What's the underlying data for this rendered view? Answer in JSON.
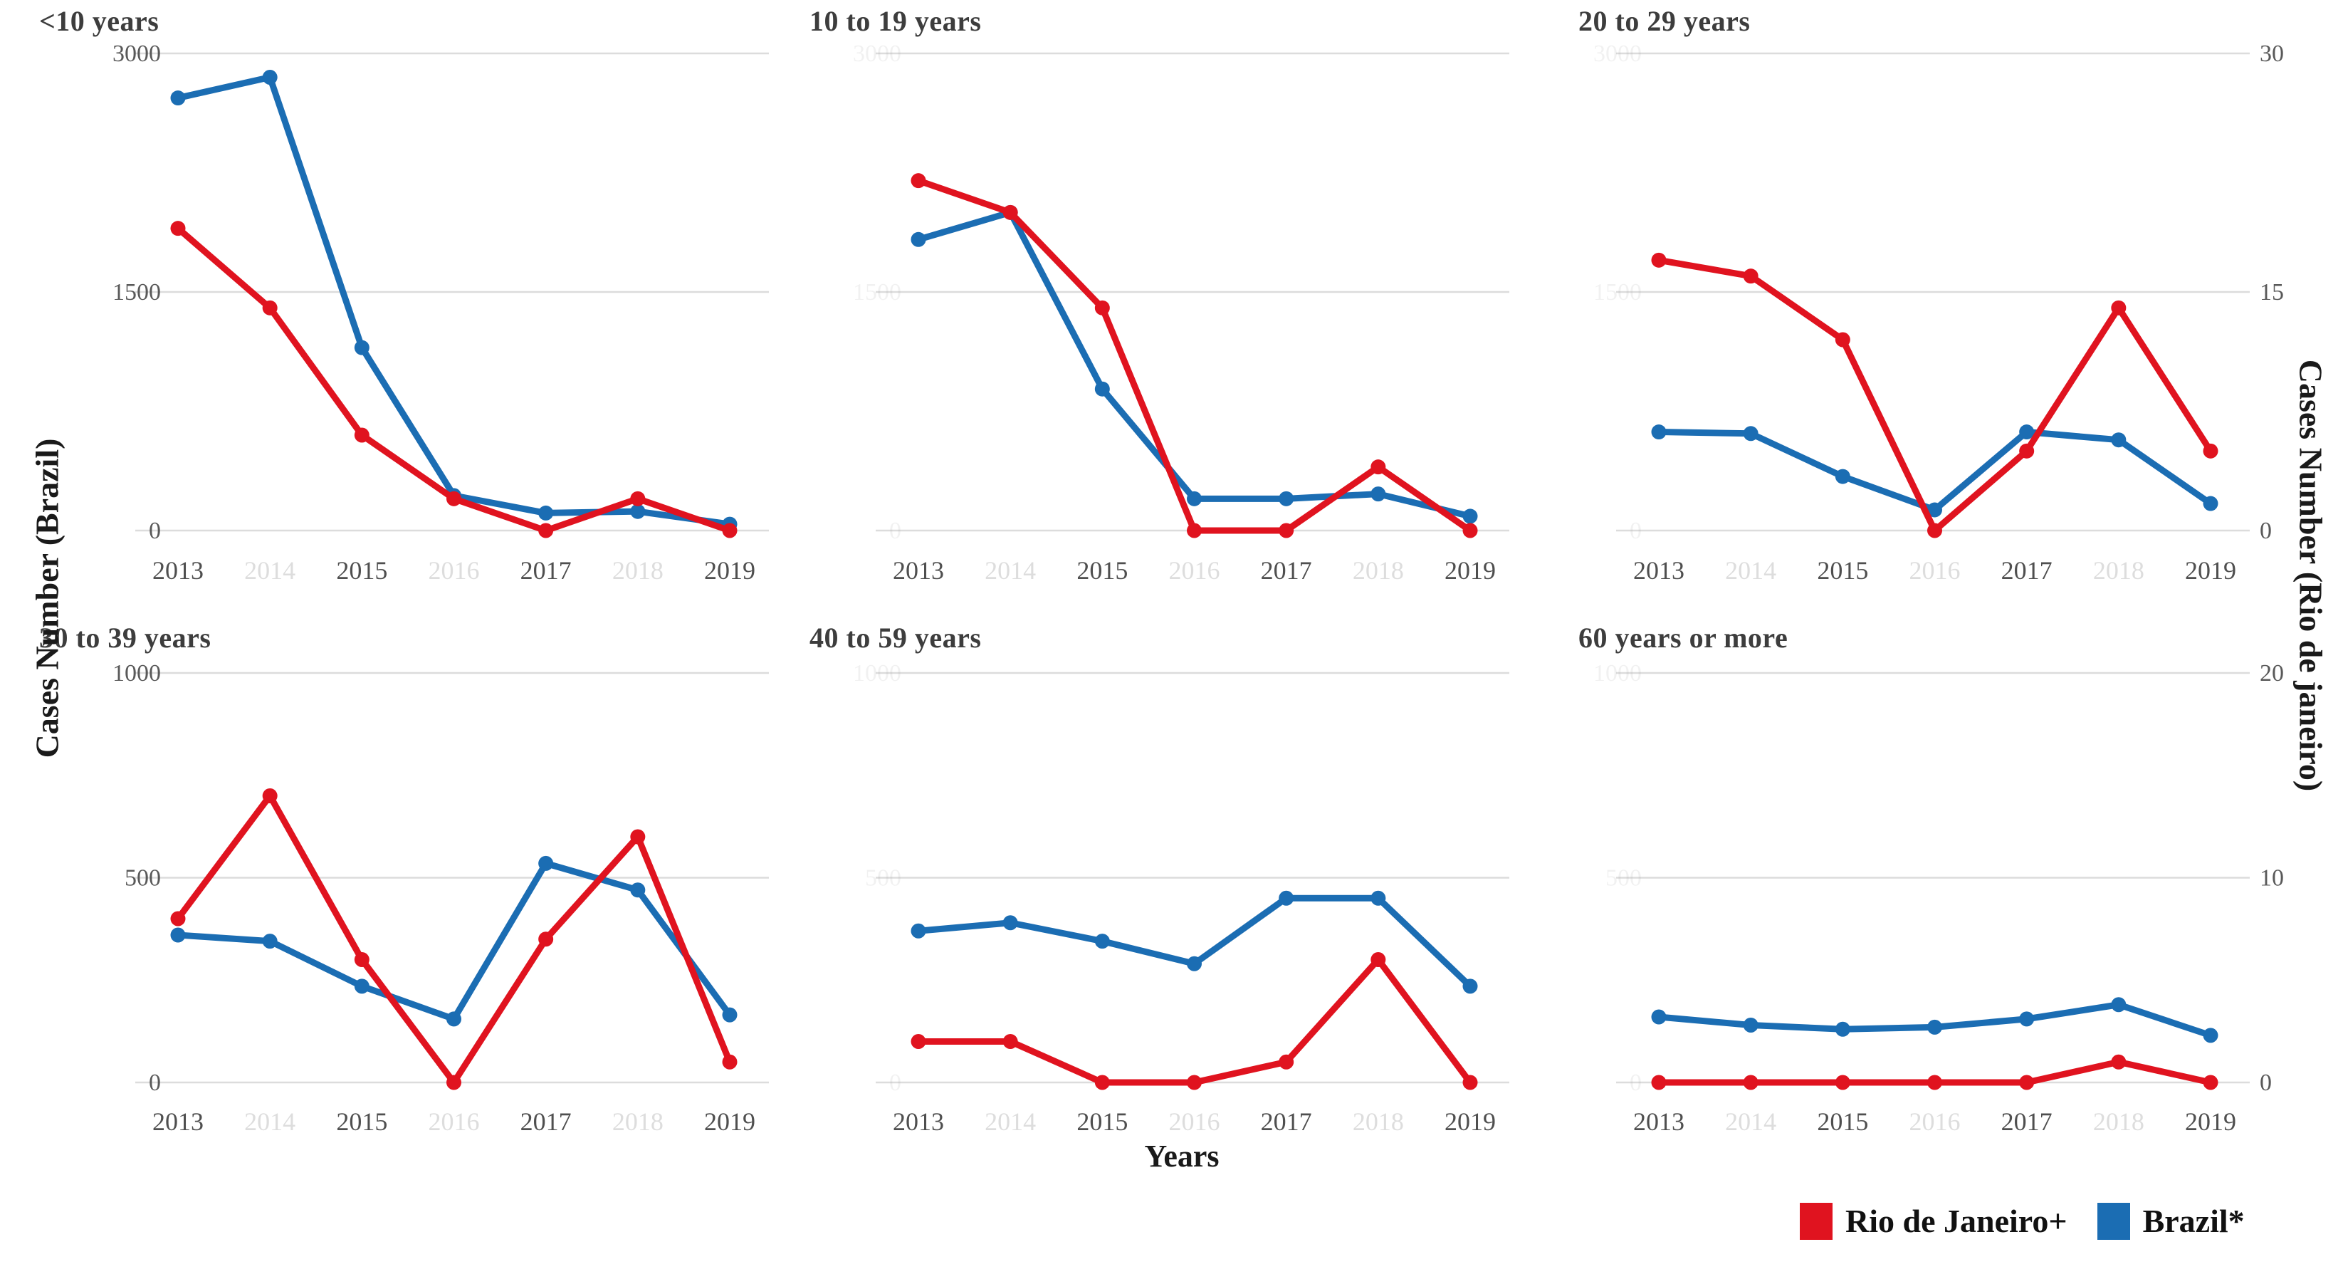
{
  "figure": {
    "x_axis_label": "Years",
    "left_axis_label": "Cases Number (Brazil)",
    "right_axis_label": "Cases Number (Rio de janeiro)",
    "legend": [
      {
        "label": "Rio de Janeiro+",
        "color": "#e0131f",
        "series": "rio"
      },
      {
        "label": "Brazil*",
        "color": "#1b6db3",
        "series": "brazil"
      }
    ],
    "colors": {
      "rio_red": "#e0131f",
      "brazil_blue": "#1b6db3",
      "gridline": "#dcdcdc",
      "tick_text": "#595959",
      "x_tick_text": "#4f4f4f",
      "faded_tick_text": "#bdbdbd",
      "title_text": "#3d3d3d"
    }
  },
  "chart_data": [
    {
      "type": "line",
      "title": "<10 years",
      "x": [
        2013,
        2014,
        2015,
        2016,
        2017,
        2018,
        2019
      ],
      "x_labeled": [
        2013,
        2015,
        2017,
        2019
      ],
      "left_ylim": [
        0,
        3000
      ],
      "left_yticks": [
        0,
        1500,
        3000
      ],
      "left_ticks_visible": true,
      "right_ylim": [
        0,
        30
      ],
      "right_yticks": [
        0,
        15,
        30
      ],
      "right_ticks_visible": false,
      "series": [
        {
          "name": "Brazil*",
          "axis": "left",
          "color": "#1b6db3",
          "values": [
            2720,
            2850,
            1150,
            220,
            110,
            120,
            40
          ]
        },
        {
          "name": "Rio de Janeiro+",
          "axis": "right",
          "color": "#e0131f",
          "values": [
            19,
            14,
            6,
            2,
            0,
            2,
            0
          ]
        }
      ]
    },
    {
      "type": "line",
      "title": "10 to 19 years",
      "x": [
        2013,
        2014,
        2015,
        2016,
        2017,
        2018,
        2019
      ],
      "x_labeled": [
        2013,
        2015,
        2017,
        2019
      ],
      "left_ylim": [
        0,
        3000
      ],
      "left_yticks": [
        0,
        1500,
        3000
      ],
      "left_ticks_visible": false,
      "right_ylim": [
        0,
        30
      ],
      "right_yticks": [
        0,
        15,
        30
      ],
      "right_ticks_visible": false,
      "series": [
        {
          "name": "Brazil*",
          "axis": "left",
          "color": "#1b6db3",
          "values": [
            1830,
            2000,
            890,
            200,
            200,
            230,
            90
          ]
        },
        {
          "name": "Rio de Janeiro+",
          "axis": "right",
          "color": "#e0131f",
          "values": [
            22,
            20,
            14,
            0,
            0,
            4,
            0
          ]
        }
      ]
    },
    {
      "type": "line",
      "title": "20 to 29 years",
      "x": [
        2013,
        2014,
        2015,
        2016,
        2017,
        2018,
        2019
      ],
      "x_labeled": [
        2013,
        2015,
        2017,
        2019
      ],
      "left_ylim": [
        0,
        3000
      ],
      "left_yticks": [
        0,
        1500,
        3000
      ],
      "left_ticks_visible": false,
      "right_ylim": [
        0,
        30
      ],
      "right_yticks": [
        0,
        15,
        30
      ],
      "right_ticks_visible": true,
      "series": [
        {
          "name": "Brazil*",
          "axis": "left",
          "color": "#1b6db3",
          "values": [
            620,
            610,
            340,
            130,
            620,
            570,
            170
          ]
        },
        {
          "name": "Rio de Janeiro+",
          "axis": "right",
          "color": "#e0131f",
          "values": [
            17,
            16,
            12,
            0,
            5,
            14,
            5
          ]
        }
      ]
    },
    {
      "type": "line",
      "title": "30 to 39 years",
      "x": [
        2013,
        2014,
        2015,
        2016,
        2017,
        2018,
        2019
      ],
      "x_labeled": [
        2013,
        2015,
        2017,
        2019
      ],
      "left_ylim": [
        0,
        1000
      ],
      "left_yticks": [
        0,
        500,
        1000
      ],
      "left_ticks_visible": true,
      "right_ylim": [
        0,
        20
      ],
      "right_yticks": [
        0,
        10,
        20
      ],
      "right_ticks_visible": false,
      "series": [
        {
          "name": "Brazil*",
          "axis": "left",
          "color": "#1b6db3",
          "values": [
            360,
            345,
            235,
            155,
            535,
            470,
            165
          ]
        },
        {
          "name": "Rio de Janeiro+",
          "axis": "right",
          "color": "#e0131f",
          "values": [
            8,
            14,
            6,
            0,
            7,
            12,
            1
          ]
        }
      ]
    },
    {
      "type": "line",
      "title": "40 to 59 years",
      "x": [
        2013,
        2014,
        2015,
        2016,
        2017,
        2018,
        2019
      ],
      "x_labeled": [
        2013,
        2015,
        2017,
        2019
      ],
      "left_ylim": [
        0,
        1000
      ],
      "left_yticks": [
        0,
        500,
        1000
      ],
      "left_ticks_visible": false,
      "right_ylim": [
        0,
        20
      ],
      "right_yticks": [
        0,
        10,
        20
      ],
      "right_ticks_visible": false,
      "series": [
        {
          "name": "Brazil*",
          "axis": "left",
          "color": "#1b6db3",
          "values": [
            370,
            390,
            345,
            290,
            450,
            450,
            235
          ]
        },
        {
          "name": "Rio de Janeiro+",
          "axis": "right",
          "color": "#e0131f",
          "values": [
            2,
            2,
            0,
            0,
            1,
            6,
            0
          ]
        }
      ]
    },
    {
      "type": "line",
      "title": "60 years or more",
      "x": [
        2013,
        2014,
        2015,
        2016,
        2017,
        2018,
        2019
      ],
      "x_labeled": [
        2013,
        2015,
        2017,
        2019
      ],
      "left_ylim": [
        0,
        1000
      ],
      "left_yticks": [
        0,
        500,
        1000
      ],
      "left_ticks_visible": false,
      "right_ylim": [
        0,
        20
      ],
      "right_yticks": [
        0,
        10,
        20
      ],
      "right_ticks_visible": true,
      "series": [
        {
          "name": "Brazil*",
          "axis": "left",
          "color": "#1b6db3",
          "values": [
            160,
            140,
            130,
            135,
            155,
            190,
            115
          ]
        },
        {
          "name": "Rio de Janeiro+",
          "axis": "right",
          "color": "#e0131f",
          "values": [
            0,
            0,
            0,
            0,
            0,
            1,
            0
          ]
        }
      ]
    }
  ]
}
